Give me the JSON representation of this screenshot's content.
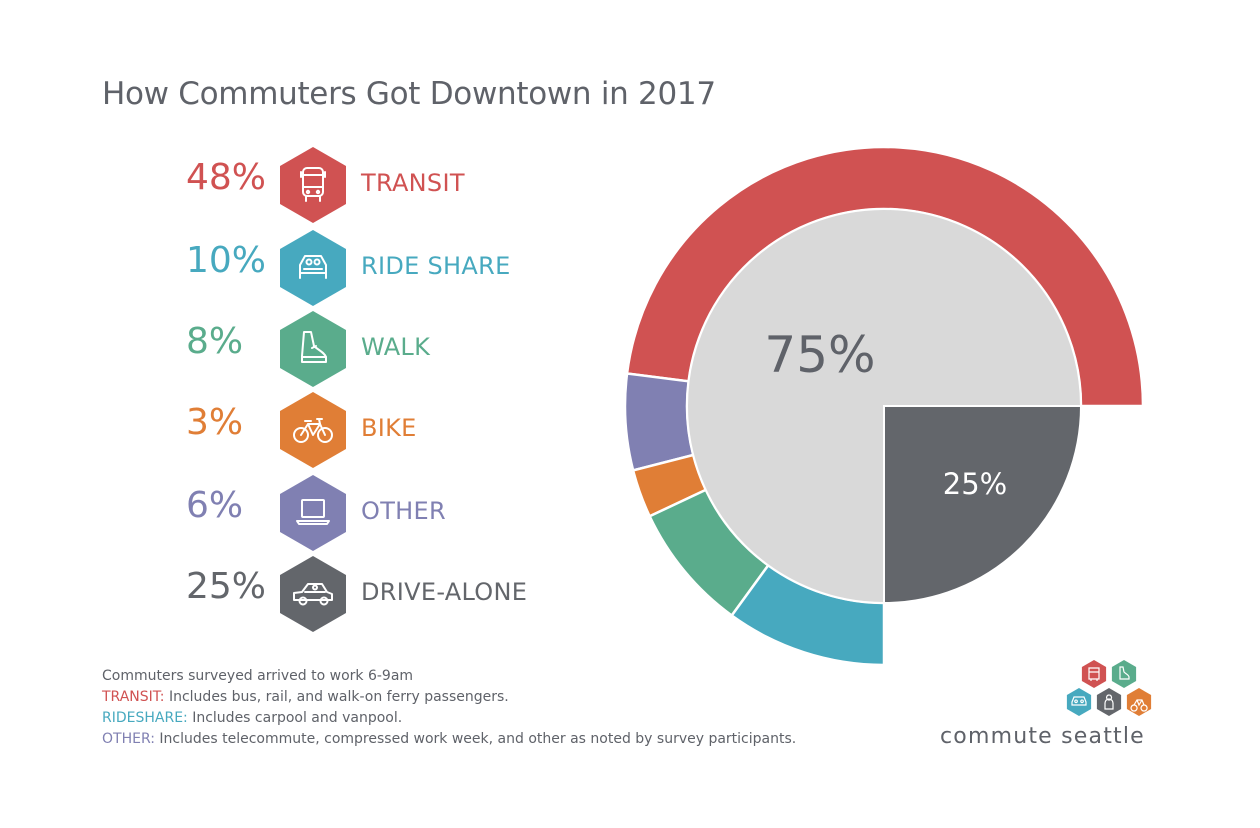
{
  "title": "How Commuters Got Downtown in 2017",
  "colors": {
    "transit": "#d05252",
    "rideshare": "#47a9bf",
    "walk": "#5aac8c",
    "bike": "#e07e36",
    "other": "#8080b2",
    "drive": "#63666b",
    "grey": "#d9d9d9",
    "text": "#5f6269"
  },
  "legend": [
    {
      "pct": "48%",
      "label": "TRANSIT",
      "icon": "bus-icon",
      "color": "#d05252"
    },
    {
      "pct": "10%",
      "label": "RIDE SHARE",
      "icon": "carpool-icon",
      "color": "#47a9bf"
    },
    {
      "pct": "8%",
      "label": "WALK",
      "icon": "shoe-icon",
      "color": "#5aac8c"
    },
    {
      "pct": "3%",
      "label": "BIKE",
      "icon": "bicycle-icon",
      "color": "#e07e36"
    },
    {
      "pct": "6%",
      "label": "OTHER",
      "icon": "laptop-icon",
      "color": "#8080b2"
    },
    {
      "pct": "25%",
      "label": "DRIVE-ALONE",
      "icon": "car-icon",
      "color": "#63666b"
    }
  ],
  "chart_data": {
    "type": "pie",
    "inner": [
      {
        "label": "75%",
        "value": 75,
        "color": "#d9d9d9"
      },
      {
        "label": "25%",
        "value": 25,
        "color": "#63666b"
      }
    ],
    "outer_ring": [
      {
        "category": "TRANSIT",
        "value": 48,
        "color": "#d05252"
      },
      {
        "category": "OTHER",
        "value": 6,
        "color": "#8080b2"
      },
      {
        "category": "BIKE",
        "value": 3,
        "color": "#e07e36"
      },
      {
        "category": "WALK",
        "value": 8,
        "color": "#5aac8c"
      },
      {
        "category": "RIDE SHARE",
        "value": 10,
        "color": "#47a9bf"
      }
    ]
  },
  "notes": {
    "line1": "Commuters surveyed arrived to work 6-9am",
    "transit_key": "TRANSIT:",
    "transit_text": " Includes bus, rail, and walk-on ferry passengers.",
    "rideshare_key": "RIDESHARE:",
    "rideshare_text": " Includes carpool and vanpool.",
    "other_key": "OTHER:",
    "other_text": " Includes telecommute, compressed work week, and other as noted by survey participants."
  },
  "brand": {
    "name": "commute seattle",
    "icons": [
      {
        "icon": "bus-icon",
        "color": "#d05252"
      },
      {
        "icon": "shoe-icon",
        "color": "#5aac8c"
      },
      {
        "icon": "carpool-icon",
        "color": "#47a9bf"
      },
      {
        "icon": "person-icon",
        "color": "#63666b"
      },
      {
        "icon": "bicycle-icon",
        "color": "#e07e36"
      }
    ]
  }
}
